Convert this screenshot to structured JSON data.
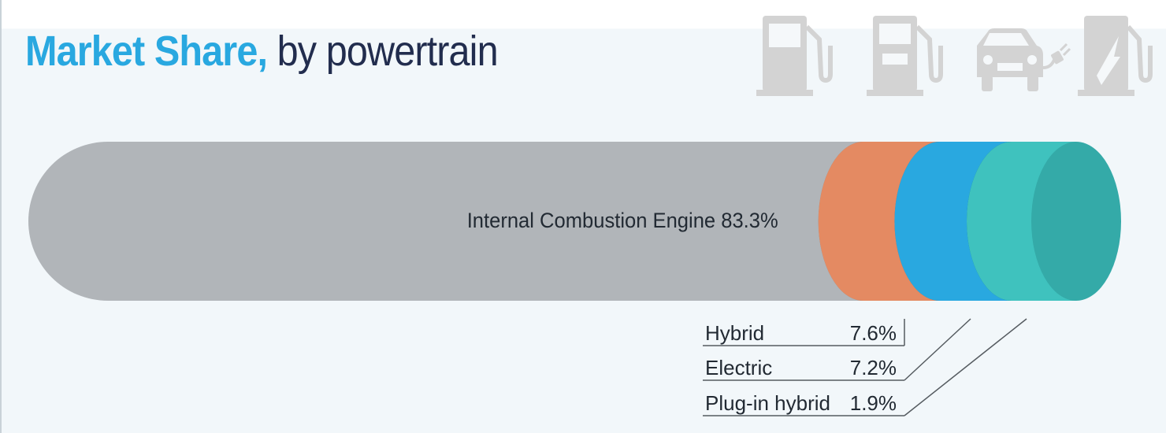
{
  "title": {
    "highlight": "Market Share,",
    "rest": "by powertrain"
  },
  "icons": [
    "fuel-pump-icon",
    "fuel-pump-display-icon",
    "electric-car-plug-icon",
    "charging-station-icon"
  ],
  "colors": {
    "background": "#f2f7fa",
    "title_accent": "#29a8e0",
    "title_dark": "#222d4e",
    "icon_gray": "#d3d3d3"
  },
  "chart_data": {
    "type": "bar",
    "title": "Market Share, by powertrain",
    "xlabel": "",
    "ylabel": "",
    "unit": "%",
    "categories": [
      "Internal Combustion Engine",
      "Hybrid",
      "Electric",
      "Plug-in hybrid"
    ],
    "values": [
      83.3,
      7.6,
      7.2,
      1.9
    ],
    "value_labels": [
      "83.3%",
      "7.6%",
      "7.2%",
      "1.9%"
    ],
    "colors": [
      {
        "body": "#b1b5b9",
        "face": "#7b858c"
      },
      {
        "body": "#e48a62",
        "face": "#d04e21"
      },
      {
        "body": "#29a8e0",
        "face": "#00629a"
      },
      {
        "body": "#3fc2be",
        "face": "#34aaa8"
      }
    ],
    "legend_position": "below-right"
  }
}
